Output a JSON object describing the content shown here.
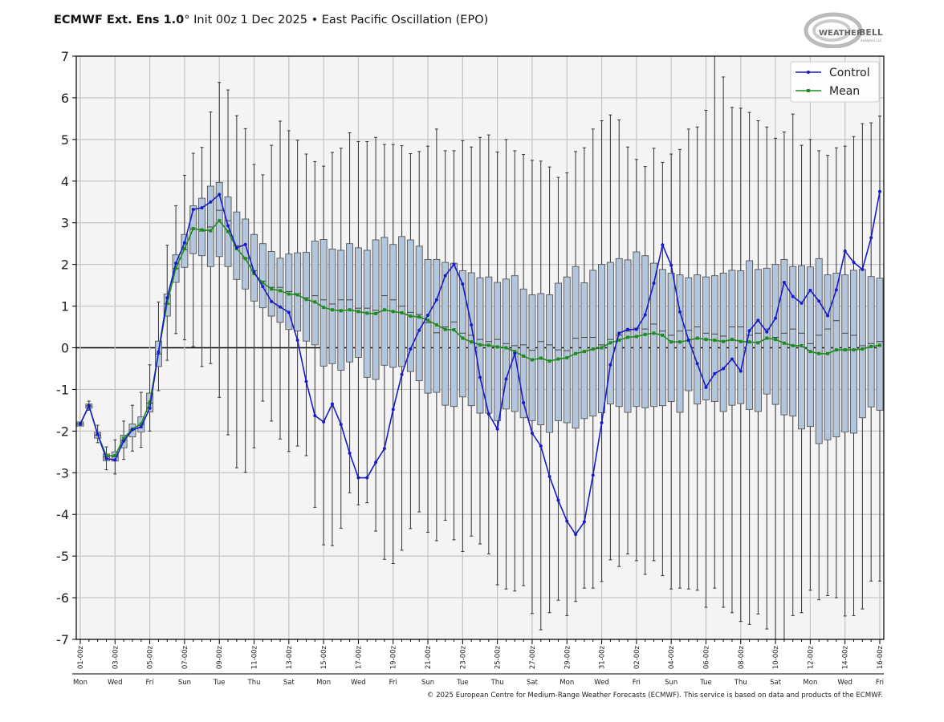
{
  "title": {
    "bold": "ECMWF Ext. Ens 1.0",
    "rest": "° Init 00z 1 Dec 2025 • East Pacific Oscillation (EPO)"
  },
  "logo": {
    "text": "WEATHERBELL",
    "subtext": "Analytics LLC"
  },
  "footer": "© 2025 European Centre for Medium-Range Weather Forecasts (ECMWF). This service is based on data and products of the ECMWF.",
  "colors": {
    "control": "#1a1acc",
    "mean": "#1e8c1e",
    "box_fill": "#b4c6dc",
    "box_edge": "#555555",
    "plot_bg": "#f4f4f4",
    "grid": "#c4c4c4"
  },
  "chart_data": {
    "type": "boxplot",
    "title": "",
    "xlabel": "",
    "ylabel": "",
    "ylim": [
      -7,
      7
    ],
    "yticks": [
      -7,
      -6,
      -5,
      -4,
      -3,
      -2,
      -1,
      0,
      1,
      2,
      3,
      4,
      5,
      6,
      7
    ],
    "grid": true,
    "legend_position": "top-right",
    "time_step_hours": 12,
    "x_tick_labels": [
      "01-00z",
      "03-00z",
      "05-00z",
      "07-00z",
      "09-00z",
      "11-00z",
      "13-00z",
      "15-00z",
      "17-00z",
      "19-00z",
      "21-00z",
      "23-00z",
      "25-00z",
      "27-00z",
      "29-00z",
      "31-00z",
      "02-00z",
      "04-00z",
      "06-00z",
      "08-00z",
      "10-00z",
      "12-00z",
      "14-00z",
      "16-00z"
    ],
    "x_day_labels": [
      "Mon",
      "Wed",
      "Fri",
      "Sun",
      "Tue",
      "Thu",
      "Sat",
      "Mon",
      "Wed",
      "Fri",
      "Sun",
      "Tue",
      "Thu",
      "Sat",
      "Mon",
      "Wed",
      "Fri",
      "Sun",
      "Tue",
      "Thu",
      "Sat",
      "Mon",
      "Wed",
      "Fri"
    ],
    "series": [
      {
        "name": "Control",
        "type": "line",
        "values": [
          -1.83,
          -1.39,
          -2.08,
          -2.66,
          -2.69,
          -2.24,
          -1.97,
          -1.9,
          -1.45,
          -0.1,
          1.2,
          2.03,
          2.52,
          3.32,
          3.36,
          3.5,
          3.68,
          2.93,
          2.4,
          2.48,
          1.82,
          1.47,
          1.11,
          0.98,
          0.85,
          0.18,
          -0.81,
          -1.63,
          -1.78,
          -1.35,
          -1.84,
          -2.53,
          -3.12,
          -3.12,
          -2.75,
          -2.42,
          -1.48,
          -0.64,
          -0.03,
          0.42,
          0.78,
          1.15,
          1.73,
          2.0,
          1.53,
          0.55,
          -0.71,
          -1.59,
          -1.95,
          -0.75,
          -0.14,
          -1.32,
          -2.05,
          -2.36,
          -3.09,
          -3.66,
          -4.16,
          -4.48,
          -4.18,
          -3.06,
          -1.8,
          -0.41,
          0.35,
          0.44,
          0.44,
          0.79,
          1.55,
          2.47,
          1.98,
          0.86,
          0.18,
          -0.38,
          -0.95,
          -0.62,
          -0.5,
          -0.27,
          -0.56,
          0.41,
          0.66,
          0.38,
          0.71,
          1.57,
          1.23,
          1.07,
          1.38,
          1.12,
          0.77,
          1.39,
          2.32,
          2.05,
          1.88,
          2.64,
          3.75
        ]
      },
      {
        "name": "Mean",
        "type": "line",
        "values": [
          -1.83,
          -1.39,
          -2.08,
          -2.59,
          -2.59,
          -2.17,
          -1.95,
          -1.83,
          -1.31,
          -0.12,
          1.07,
          1.91,
          2.38,
          2.86,
          2.83,
          2.81,
          3.05,
          2.79,
          2.38,
          2.14,
          1.78,
          1.56,
          1.41,
          1.37,
          1.29,
          1.27,
          1.16,
          1.1,
          0.97,
          0.91,
          0.89,
          0.91,
          0.87,
          0.83,
          0.82,
          0.91,
          0.87,
          0.84,
          0.76,
          0.74,
          0.66,
          0.55,
          0.44,
          0.43,
          0.23,
          0.14,
          0.07,
          0.06,
          0.02,
          0.0,
          -0.09,
          -0.2,
          -0.29,
          -0.25,
          -0.32,
          -0.27,
          -0.24,
          -0.14,
          -0.09,
          -0.03,
          0.0,
          0.12,
          0.18,
          0.25,
          0.27,
          0.32,
          0.35,
          0.3,
          0.14,
          0.14,
          0.18,
          0.23,
          0.2,
          0.18,
          0.15,
          0.2,
          0.15,
          0.14,
          0.12,
          0.23,
          0.2,
          0.11,
          0.05,
          0.05,
          -0.09,
          -0.14,
          -0.14,
          -0.05,
          -0.05,
          -0.05,
          -0.03,
          0.03,
          0.06
        ]
      }
    ],
    "boxes": {
      "max": [
        -1.8,
        -1.28,
        -1.86,
        -2.38,
        -2.21,
        -1.76,
        -1.38,
        -1.07,
        -0.41,
        1.1,
        2.46,
        3.41,
        4.14,
        4.67,
        4.81,
        5.66,
        6.37,
        6.19,
        5.57,
        5.26,
        4.4,
        4.15,
        4.86,
        5.44,
        5.21,
        4.98,
        4.65,
        4.47,
        4.36,
        4.69,
        4.79,
        5.16,
        4.95,
        4.95,
        5.05,
        4.88,
        4.88,
        4.85,
        4.66,
        4.71,
        4.84,
        5.25,
        4.73,
        4.73,
        4.97,
        4.82,
        5.05,
        5.11,
        4.7,
        5.0,
        4.73,
        4.64,
        4.5,
        4.48,
        4.34,
        4.09,
        4.2,
        4.71,
        4.8,
        5.25,
        5.45,
        5.59,
        5.47,
        4.82,
        4.52,
        4.35,
        4.79,
        4.45,
        4.65,
        4.76,
        5.25,
        5.3,
        5.7,
        7.0,
        6.5,
        5.77,
        5.75,
        5.65,
        5.45,
        5.3,
        5.03,
        5.18,
        5.61,
        4.86,
        5.0,
        4.73,
        4.62,
        4.8,
        4.84,
        5.07,
        5.38,
        5.4,
        5.56
      ],
      "q3": [
        -1.78,
        -1.35,
        -2.03,
        -2.55,
        -2.5,
        -2.1,
        -1.83,
        -1.66,
        -1.09,
        0.16,
        1.29,
        2.23,
        2.72,
        3.41,
        3.59,
        3.88,
        3.97,
        3.62,
        3.26,
        3.09,
        2.72,
        2.5,
        2.31,
        2.15,
        2.25,
        2.28,
        2.29,
        2.56,
        2.6,
        2.37,
        2.34,
        2.5,
        2.4,
        2.34,
        2.59,
        2.65,
        2.48,
        2.67,
        2.59,
        2.44,
        2.12,
        2.12,
        2.05,
        2.03,
        1.85,
        1.8,
        1.68,
        1.7,
        1.57,
        1.65,
        1.73,
        1.41,
        1.27,
        1.3,
        1.27,
        1.55,
        1.7,
        1.95,
        1.56,
        1.86,
        2.0,
        2.05,
        2.14,
        2.11,
        2.3,
        2.21,
        2.03,
        1.88,
        1.79,
        1.75,
        1.68,
        1.75,
        1.7,
        1.73,
        1.79,
        1.86,
        1.85,
        2.09,
        1.88,
        1.91,
        2.0,
        2.12,
        1.95,
        1.97,
        1.94,
        2.14,
        1.75,
        1.79,
        1.75,
        1.86,
        1.88,
        1.71,
        1.67
      ],
      "median": [
        -1.83,
        -1.4,
        -2.1,
        -2.62,
        -2.62,
        -2.22,
        -1.97,
        -1.85,
        -1.33,
        -0.15,
        1.05,
        1.9,
        2.35,
        2.85,
        2.8,
        2.9,
        3.3,
        3.05,
        2.45,
        2.15,
        1.85,
        1.6,
        1.45,
        1.45,
        1.35,
        1.3,
        1.2,
        1.25,
        1.15,
        1.05,
        1.15,
        1.15,
        0.95,
        0.95,
        0.9,
        1.25,
        1.15,
        1.0,
        0.85,
        0.8,
        0.6,
        0.36,
        0.5,
        0.62,
        0.35,
        0.3,
        0.2,
        0.15,
        0.2,
        0.1,
        0.05,
        0.07,
        -0.06,
        0.15,
        0.07,
        -0.05,
        -0.07,
        0.23,
        0.25,
        0.25,
        0.07,
        0.2,
        0.3,
        0.4,
        0.47,
        0.45,
        0.57,
        0.4,
        0.3,
        0.4,
        0.42,
        0.5,
        0.35,
        0.33,
        0.28,
        0.5,
        0.5,
        0.3,
        0.35,
        0.45,
        0.25,
        0.35,
        0.45,
        0.35,
        0.1,
        0.3,
        0.45,
        0.65,
        0.35,
        0.3,
        0.05,
        0.1,
        0.15
      ],
      "q1": [
        -1.88,
        -1.45,
        -2.17,
        -2.71,
        -2.72,
        -2.4,
        -2.14,
        -2.02,
        -1.54,
        -0.45,
        0.76,
        1.57,
        1.93,
        2.26,
        2.21,
        1.95,
        2.19,
        1.95,
        1.64,
        1.41,
        1.12,
        0.96,
        0.76,
        0.61,
        0.44,
        0.4,
        0.16,
        0.07,
        -0.44,
        -0.38,
        -0.54,
        -0.34,
        -0.23,
        -0.71,
        -0.76,
        -0.42,
        -0.47,
        -0.45,
        -0.57,
        -0.79,
        -1.09,
        -1.07,
        -1.38,
        -1.41,
        -1.18,
        -1.39,
        -1.57,
        -1.57,
        -1.75,
        -1.47,
        -1.53,
        -1.68,
        -1.75,
        -1.85,
        -2.03,
        -1.75,
        -1.8,
        -1.93,
        -1.7,
        -1.64,
        -1.56,
        -1.35,
        -1.41,
        -1.55,
        -1.41,
        -1.44,
        -1.41,
        -1.39,
        -1.29,
        -1.55,
        -1.03,
        -1.35,
        -1.25,
        -1.29,
        -1.53,
        -1.38,
        -1.34,
        -1.48,
        -1.53,
        -1.11,
        -1.36,
        -1.61,
        -1.64,
        -1.95,
        -1.89,
        -2.3,
        -2.21,
        -2.14,
        -2.02,
        -2.05,
        -1.68,
        -1.42,
        -1.5
      ],
      "min": [
        -1.86,
        -1.5,
        -2.28,
        -2.93,
        -3.03,
        -2.68,
        -2.48,
        -2.39,
        -2.0,
        -1.03,
        -0.3,
        0.34,
        0.19,
        0.03,
        -0.45,
        -0.38,
        -1.19,
        -2.09,
        -2.88,
        -2.99,
        -2.4,
        -1.28,
        -1.76,
        -2.19,
        -2.49,
        -2.36,
        -2.59,
        -3.83,
        -4.73,
        -4.75,
        -4.33,
        -3.48,
        -3.77,
        -3.72,
        -4.4,
        -5.08,
        -5.18,
        -4.86,
        -4.34,
        -3.94,
        -4.43,
        -4.63,
        -4.14,
        -4.61,
        -4.89,
        -4.52,
        -4.71,
        -4.95,
        -5.69,
        -5.79,
        -5.84,
        -5.71,
        -6.38,
        -6.77,
        -6.36,
        -6.06,
        -6.43,
        -6.09,
        -5.77,
        -5.77,
        -5.61,
        -5.09,
        -5.25,
        -4.95,
        -5.11,
        -5.44,
        -5.11,
        -5.47,
        -5.79,
        -5.77,
        -5.79,
        -5.82,
        -6.23,
        -5.77,
        -6.23,
        -6.36,
        -6.57,
        -6.64,
        -6.39,
        -6.75,
        -7.0,
        -7.0,
        -6.43,
        -6.36,
        -5.82,
        -6.05,
        -5.95,
        -6.0,
        -6.44,
        -6.43,
        -6.27,
        -5.6,
        -5.6
      ]
    }
  }
}
